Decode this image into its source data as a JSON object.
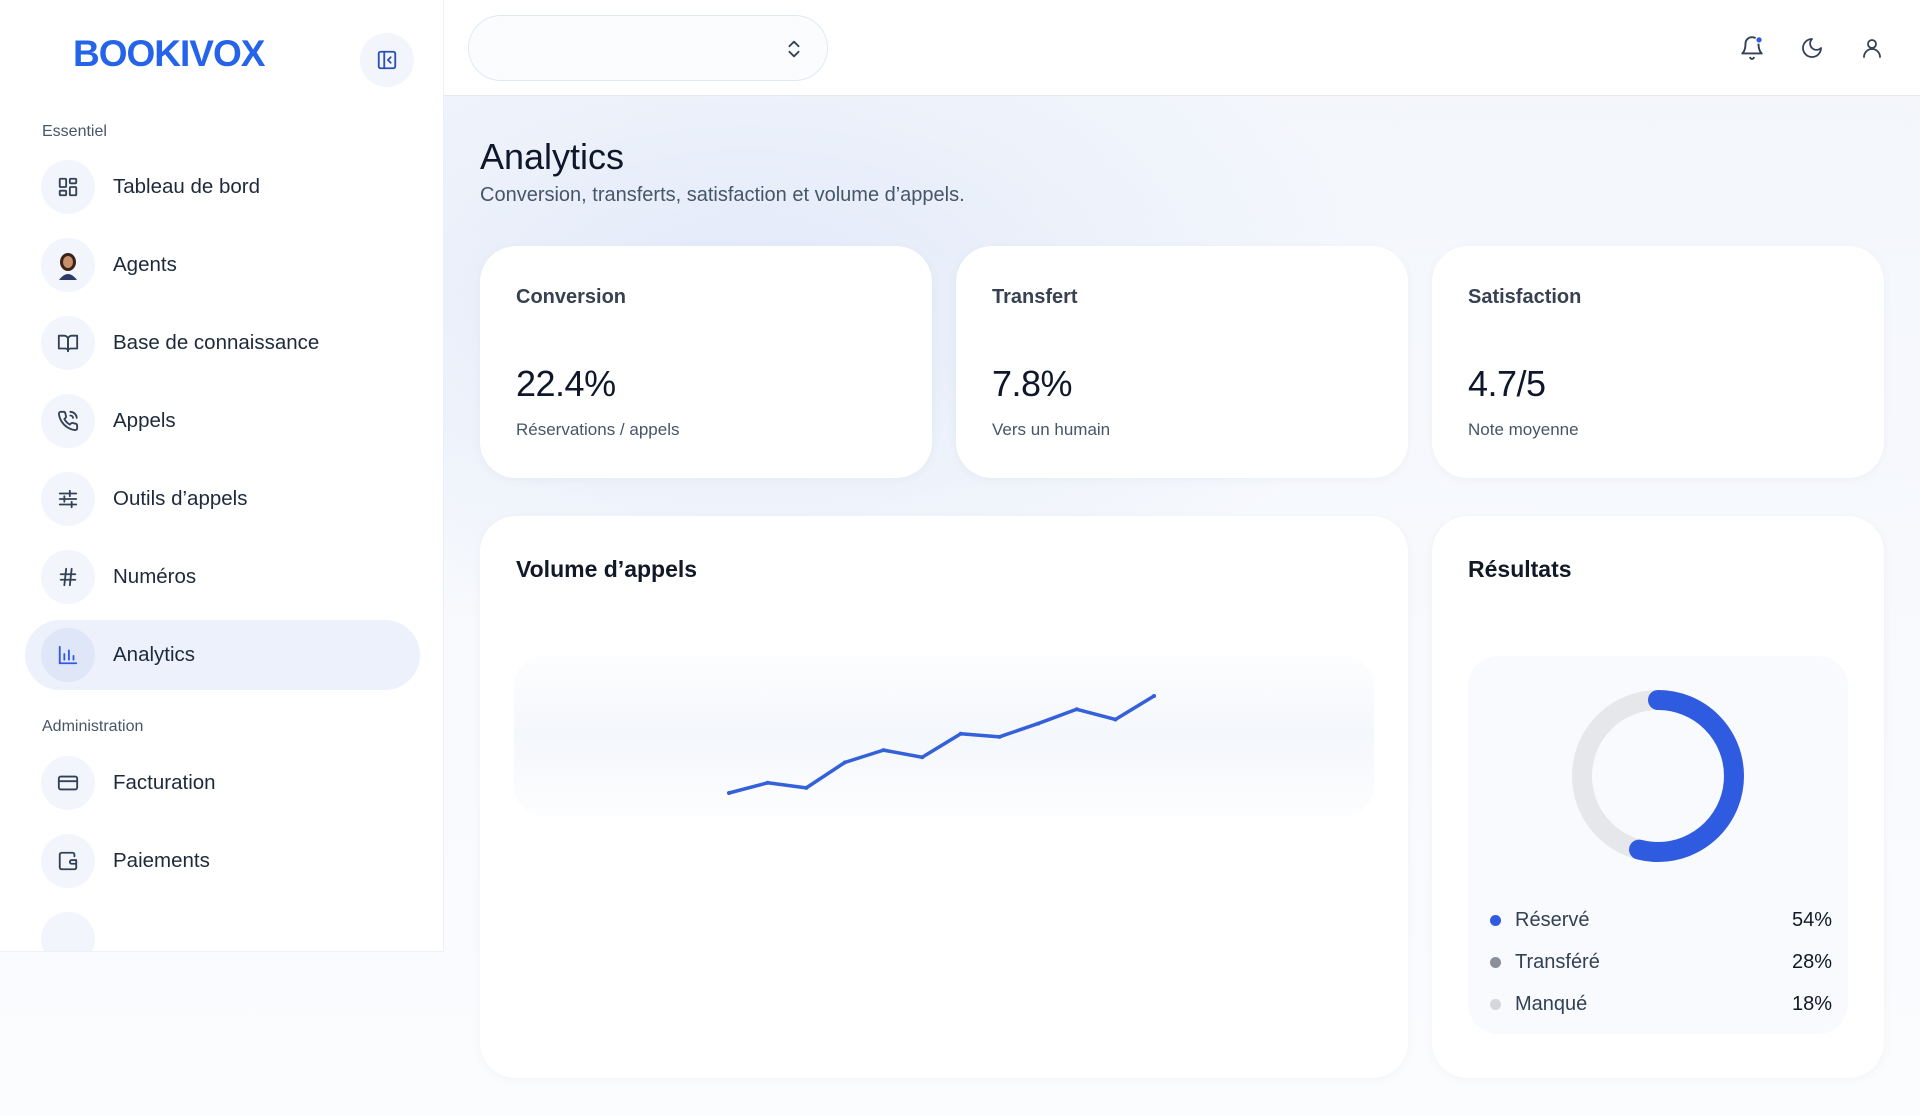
{
  "sidebar": {
    "logo": "BOOKIVOX",
    "sections": {
      "essentiel": "Essentiel",
      "administration": "Administration"
    },
    "items": [
      {
        "label": "Tableau de bord",
        "icon": "dashboard-grid-icon"
      },
      {
        "label": "Agents",
        "icon": "agent-avatar"
      },
      {
        "label": "Base de connaissance",
        "icon": "book-open-icon"
      },
      {
        "label": "Appels",
        "icon": "phone-call-icon"
      },
      {
        "label": "Outils d’appels",
        "icon": "sliders-icon"
      },
      {
        "label": "Numéros",
        "icon": "hash-icon"
      },
      {
        "label": "Analytics",
        "icon": "bar-chart-icon",
        "active": true
      },
      {
        "label": "Facturation",
        "icon": "credit-card-icon"
      },
      {
        "label": "Paiements",
        "icon": "wallet-icon"
      }
    ]
  },
  "topbar": {
    "selector_value": "",
    "icons": [
      "bell-icon",
      "moon-icon",
      "user-icon"
    ]
  },
  "page": {
    "title": "Analytics",
    "subtitle": "Conversion, transferts, satisfaction et volume d’appels."
  },
  "stats": [
    {
      "label": "Conversion",
      "value": "22.4%",
      "sub": "Réservations / appels"
    },
    {
      "label": "Transfert",
      "value": "7.8%",
      "sub": "Vers un humain"
    },
    {
      "label": "Satisfaction",
      "value": "4.7/5",
      "sub": "Note moyenne"
    }
  ],
  "volume": {
    "title": "Volume d’appels"
  },
  "results": {
    "title": "Résultats",
    "legend": [
      {
        "label": "Réservé",
        "pct": "54%",
        "color": "#2f5be0"
      },
      {
        "label": "Transféré",
        "pct": "28%",
        "color": "#8a8f99"
      },
      {
        "label": "Manqué",
        "pct": "18%",
        "color": "#d4d6db"
      }
    ]
  },
  "colors": {
    "accent": "#2563eb",
    "line": "#3461d9"
  },
  "chart_data": [
    {
      "type": "line",
      "title": "Volume d’appels",
      "x": [
        1,
        2,
        3,
        4,
        5,
        6,
        7,
        8,
        9,
        10,
        11,
        12
      ],
      "series": [
        {
          "values": [
            0,
            10,
            5,
            30,
            42,
            35,
            58,
            55,
            68,
            82,
            72,
            95
          ]
        }
      ],
      "grid": false,
      "xlabel": "",
      "ylabel": ""
    },
    {
      "type": "pie",
      "title": "Résultats",
      "categories": [
        "Réservé",
        "Transféré",
        "Manqué"
      ],
      "values": [
        54,
        28,
        18
      ],
      "legend": "bottom"
    }
  ]
}
